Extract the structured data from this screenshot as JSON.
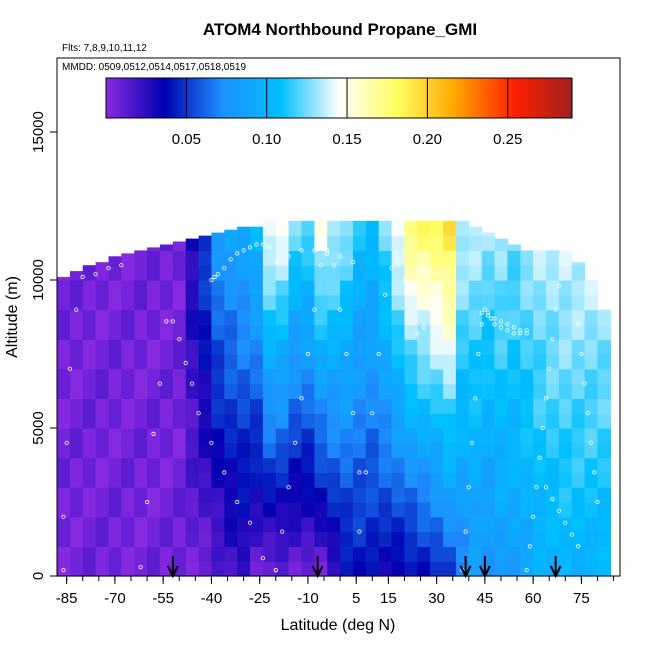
{
  "chart_data": {
    "type": "heatmap",
    "title": "ATOM4 Northbound Propane_GMI",
    "subtitles": [
      "Flts: 7,8,9,10,11,12",
      "MMDD: 0509,0512,0514,0517,0518,0519"
    ],
    "xlabel": "Latitude (deg N)",
    "ylabel": "Altitude (m)",
    "xlim": [
      -88,
      87
    ],
    "ylim": [
      0,
      17500
    ],
    "x_tick_values": [
      -85,
      -70,
      -55,
      -40,
      -25,
      -10,
      5,
      15,
      30,
      45,
      60,
      75
    ],
    "x_tick_labels": [
      "-85",
      "-70",
      "-55",
      "-40",
      "-25",
      "-10",
      "5",
      "15",
      "30",
      "45",
      "60",
      "75"
    ],
    "y_tick_values": [
      0,
      5000,
      10000,
      15000
    ],
    "y_tick_labels": [
      "0",
      "5000",
      "10000",
      "15000"
    ],
    "colorbar": {
      "range": [
        0,
        0.29
      ],
      "tick_values": [
        0.05,
        0.1,
        0.15,
        0.2,
        0.25
      ],
      "tick_labels": [
        "0.05",
        "0.10",
        "0.15",
        "0.20",
        "0.25"
      ],
      "colors": [
        "#8a2be2",
        "#0000b0",
        "#1e90ff",
        "#00bfff",
        "#ffffff",
        "#ffff60",
        "#ffa500",
        "#ff2000",
        "#a02020"
      ]
    },
    "arrow_latitudes": [
      -52,
      -7,
      39,
      45,
      67
    ],
    "columns": [
      {
        "x": -86,
        "ztop": 10100,
        "base": 0.006,
        "grad": 0.0
      },
      {
        "x": -82,
        "ztop": 10300,
        "base": 0.006,
        "grad": 0.0
      },
      {
        "x": -78,
        "ztop": 10500,
        "base": 0.006,
        "grad": 0.0
      },
      {
        "x": -74,
        "ztop": 10600,
        "base": 0.006,
        "grad": 0.0
      },
      {
        "x": -70,
        "ztop": 10800,
        "base": 0.006,
        "grad": 0.0
      },
      {
        "x": -66,
        "ztop": 10900,
        "base": 0.006,
        "grad": 0.0
      },
      {
        "x": -62,
        "ztop": 11000,
        "base": 0.006,
        "grad": 0.0
      },
      {
        "x": -58,
        "ztop": 11100,
        "base": 0.006,
        "grad": 0.0
      },
      {
        "x": -54,
        "ztop": 11200,
        "base": 0.006,
        "grad": 0.0
      },
      {
        "x": -50,
        "ztop": 11300,
        "base": 0.007,
        "grad": 0.0
      },
      {
        "x": -46,
        "ztop": 11400,
        "base": 0.008,
        "grad": 0.002
      },
      {
        "x": -42,
        "ztop": 11500,
        "base": 0.009,
        "grad": 0.004
      },
      {
        "x": -38,
        "ztop": 11600,
        "base": 0.012,
        "grad": 0.006
      },
      {
        "x": -34,
        "ztop": 11700,
        "base": 0.018,
        "grad": 0.006
      },
      {
        "x": -30,
        "ztop": 11800,
        "base": 0.022,
        "grad": 0.006
      },
      {
        "x": -26,
        "ztop": 11800,
        "base": 0.012,
        "grad": 0.008
      },
      {
        "x": -22,
        "ztop": 12000,
        "base": 0.01,
        "grad": 0.012
      },
      {
        "x": -18,
        "ztop": 12000,
        "base": 0.009,
        "grad": 0.012
      },
      {
        "x": -14,
        "ztop": 12000,
        "base": 0.008,
        "grad": 0.01
      },
      {
        "x": -10,
        "ztop": 12000,
        "base": 0.008,
        "grad": 0.01
      },
      {
        "x": -6,
        "ztop": 12000,
        "base": 0.01,
        "grad": 0.012
      },
      {
        "x": -2,
        "ztop": 12000,
        "base": 0.024,
        "grad": 0.01
      },
      {
        "x": 2,
        "ztop": 12000,
        "base": 0.036,
        "grad": 0.008
      },
      {
        "x": 6,
        "ztop": 12000,
        "base": 0.04,
        "grad": 0.006
      },
      {
        "x": 10,
        "ztop": 12000,
        "base": 0.038,
        "grad": 0.006
      },
      {
        "x": 14,
        "ztop": 12000,
        "base": 0.035,
        "grad": 0.008
      },
      {
        "x": 18,
        "ztop": 12000,
        "base": 0.035,
        "grad": 0.01
      },
      {
        "x": 22,
        "ztop": 12000,
        "base": 0.036,
        "grad": 0.012
      },
      {
        "x": 26,
        "ztop": 12000,
        "base": 0.04,
        "grad": 0.012
      },
      {
        "x": 30,
        "ztop": 12000,
        "base": 0.046,
        "grad": 0.012
      },
      {
        "x": 34,
        "ztop": 12000,
        "base": 0.055,
        "grad": 0.012
      },
      {
        "x": 38,
        "ztop": 12000,
        "base": 0.07,
        "grad": 0.01
      },
      {
        "x": 42,
        "ztop": 11800,
        "base": 0.08,
        "grad": 0.008
      },
      {
        "x": 46,
        "ztop": 11600,
        "base": 0.075,
        "grad": 0.008
      },
      {
        "x": 50,
        "ztop": 11400,
        "base": 0.08,
        "grad": 0.008
      },
      {
        "x": 54,
        "ztop": 11200,
        "base": 0.085,
        "grad": 0.006
      },
      {
        "x": 58,
        "ztop": 11000,
        "base": 0.09,
        "grad": 0.006
      },
      {
        "x": 62,
        "ztop": 11000,
        "base": 0.095,
        "grad": 0.006
      },
      {
        "x": 66,
        "ztop": 11000,
        "base": 0.098,
        "grad": 0.006
      },
      {
        "x": 70,
        "ztop": 11000,
        "base": 0.1,
        "grad": 0.006
      },
      {
        "x": 74,
        "ztop": 10600,
        "base": 0.1,
        "grad": 0.006
      },
      {
        "x": 78,
        "ztop": 10000,
        "base": 0.1,
        "grad": 0.006
      },
      {
        "x": 82,
        "ztop": 9000,
        "base": 0.1,
        "grad": 0.006
      }
    ],
    "flight_tracks": [
      {
        "x": [
          -86,
          -86,
          -85,
          -84,
          -82,
          -80,
          -76,
          -72,
          -68
        ],
        "y": [
          200,
          2000,
          4500,
          7000,
          9000,
          10100,
          10200,
          10400,
          10500
        ]
      },
      {
        "x": [
          -62,
          -60,
          -58,
          -56,
          -54,
          -52,
          -50,
          -48,
          -46,
          -44,
          -40,
          -36,
          -32,
          -28,
          -24,
          -20
        ],
        "y": [
          300,
          2500,
          4800,
          6500,
          8600,
          8600,
          8000,
          7200,
          6500,
          5500,
          4500,
          3500,
          2500,
          1800,
          600,
          200
        ]
      },
      {
        "x": [
          -40,
          -39,
          -38,
          -36,
          -34,
          -32,
          -30,
          -28,
          -26,
          -24,
          -22
        ],
        "y": [
          10000,
          10100,
          10200,
          10400,
          10700,
          10900,
          11000,
          11100,
          11200,
          11200,
          11100
        ]
      },
      {
        "x": [
          -20,
          -18,
          -16,
          -14,
          -12,
          -10,
          -8,
          -6,
          -4,
          -2,
          0,
          2,
          4,
          6
        ],
        "y": [
          200,
          1500,
          3000,
          4500,
          6000,
          7500,
          9000,
          10500,
          11000,
          10500,
          9000,
          7500,
          5500,
          3500
        ]
      },
      {
        "x": [
          -20,
          -16,
          -12,
          -8,
          -4,
          0,
          4
        ],
        "y": [
          10600,
          10800,
          11000,
          11000,
          10900,
          10800,
          10600
        ]
      },
      {
        "x": [
          6,
          8,
          10,
          12,
          14,
          16,
          18,
          20,
          22,
          24,
          26,
          28,
          30,
          32
        ],
        "y": [
          1500,
          3500,
          5500,
          7500,
          9500,
          10400,
          10500,
          10000,
          9000,
          8200,
          8400,
          9000,
          9800,
          10300
        ]
      },
      {
        "x": [
          26,
          28,
          30,
          32,
          34
        ],
        "y": [
          10400,
          10300,
          10200,
          10000,
          9900
        ]
      },
      {
        "x": [
          38,
          39,
          40,
          41,
          42,
          43,
          44,
          45,
          46,
          47,
          48,
          50,
          52,
          54,
          56,
          58
        ],
        "y": [
          200,
          1500,
          3000,
          4500,
          6000,
          7500,
          8500,
          9000,
          8900,
          8700,
          8500,
          8400,
          8300,
          8200,
          8200,
          8200
        ]
      },
      {
        "x": [
          44,
          46,
          48,
          50,
          52,
          54,
          56,
          58
        ],
        "y": [
          8900,
          8800,
          8700,
          8600,
          8500,
          8400,
          8300,
          8300
        ]
      },
      {
        "x": [
          58,
          59,
          60,
          61,
          62,
          63,
          64,
          65,
          66,
          67,
          68,
          70,
          72,
          74,
          76,
          78,
          80
        ],
        "y": [
          200,
          1000,
          2000,
          3000,
          4000,
          5000,
          6000,
          7000,
          8000,
          9000,
          9800,
          10500,
          11000,
          11200,
          11300,
          10900,
          10600
        ]
      },
      {
        "x": [
          64,
          66,
          68,
          70,
          72,
          74
        ],
        "y": [
          3000,
          2600,
          2200,
          1800,
          1400,
          1000
        ]
      },
      {
        "x": [
          74,
          75,
          76,
          77,
          78,
          79,
          80
        ],
        "y": [
          8500,
          7500,
          6500,
          5500,
          4500,
          3500,
          2500
        ]
      }
    ]
  }
}
